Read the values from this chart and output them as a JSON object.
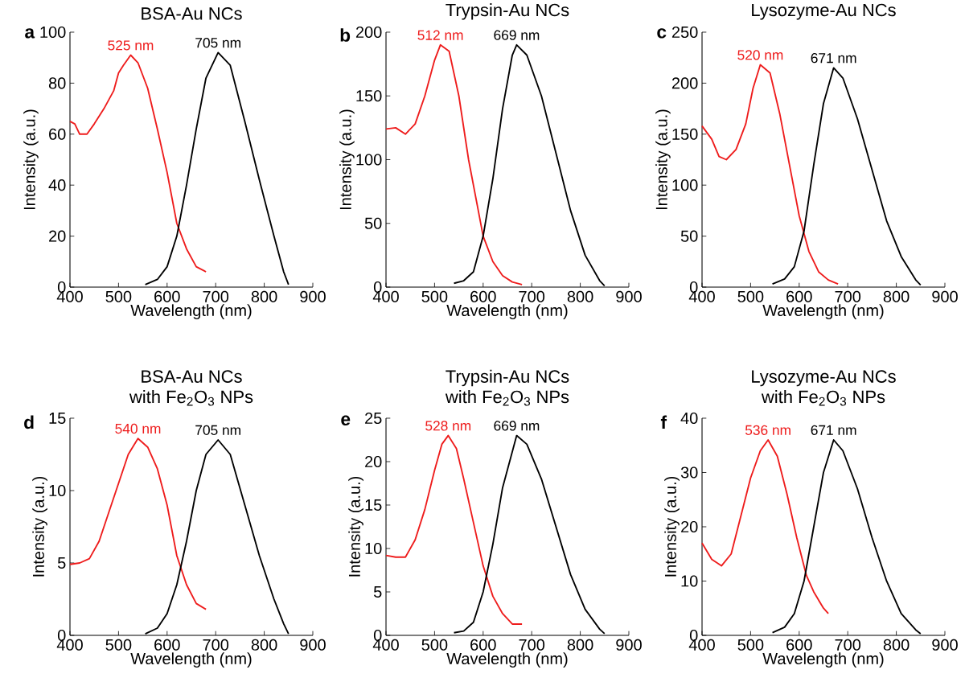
{
  "chart_data": [
    {
      "type": "line",
      "title": "BSA-Au NCs",
      "xlabel": "Wavelength (nm)",
      "ylabel": "Intensity (a.u.)",
      "xlim": [
        400,
        900
      ],
      "xticks": [
        400,
        500,
        600,
        700,
        800,
        900
      ],
      "ylim": [
        0,
        100
      ],
      "yticks": [
        0,
        20,
        40,
        60,
        80,
        100
      ],
      "marker": "none",
      "line_style": "solid",
      "annotations": [
        "a",
        {
          "text": "525 nm",
          "x": 525,
          "y": 91
        },
        {
          "text": "705 nm",
          "x": 705,
          "y": 92
        }
      ],
      "series": [
        {
          "color": "#ee1c1c",
          "x": [
            400,
            410,
            420,
            435,
            450,
            470,
            490,
            500,
            510,
            525,
            540,
            560,
            580,
            600,
            620,
            640,
            660,
            680
          ],
          "values": [
            65,
            64,
            60,
            60,
            64,
            70,
            77,
            84,
            87,
            91,
            88,
            78,
            62,
            45,
            25,
            15,
            8,
            6
          ]
        },
        {
          "color": "#000000",
          "x": [
            555,
            580,
            600,
            620,
            640,
            660,
            680,
            705,
            730,
            760,
            790,
            820,
            840,
            850
          ],
          "values": [
            1,
            3,
            8,
            20,
            40,
            62,
            82,
            92,
            87,
            65,
            42,
            20,
            6,
            1
          ]
        }
      ]
    },
    {
      "type": "line",
      "title": "Trypsin-Au NCs",
      "xlabel": "Wavelength (nm)",
      "ylabel": "Intensity (a.u.)",
      "xlim": [
        400,
        900
      ],
      "xticks": [
        400,
        500,
        600,
        700,
        800,
        900
      ],
      "ylim": [
        0,
        200
      ],
      "yticks": [
        0,
        50,
        100,
        150,
        200
      ],
      "marker": "none",
      "line_style": "solid",
      "annotations": [
        "b",
        {
          "text": "512 nm",
          "x": 512,
          "y": 190
        },
        {
          "text": "669 nm",
          "x": 669,
          "y": 190
        }
      ],
      "series": [
        {
          "color": "#ee1c1c",
          "x": [
            400,
            420,
            440,
            460,
            480,
            500,
            512,
            530,
            550,
            570,
            590,
            600,
            620,
            640,
            660,
            680
          ],
          "values": [
            124,
            125,
            120,
            128,
            150,
            178,
            190,
            185,
            150,
            100,
            60,
            40,
            20,
            9,
            4,
            2
          ]
        },
        {
          "color": "#000000",
          "x": [
            540,
            560,
            580,
            600,
            620,
            640,
            660,
            669,
            690,
            720,
            750,
            780,
            810,
            840,
            850
          ],
          "values": [
            3,
            5,
            12,
            40,
            85,
            140,
            182,
            190,
            182,
            150,
            105,
            60,
            25,
            5,
            1
          ]
        }
      ]
    },
    {
      "type": "line",
      "title": "Lysozyme-Au NCs",
      "xlabel": "Wavelength (nm)",
      "ylabel": "Intensity (a.u.)",
      "xlim": [
        400,
        900
      ],
      "xticks": [
        400,
        500,
        600,
        700,
        800,
        900
      ],
      "ylim": [
        0,
        250
      ],
      "yticks": [
        0,
        50,
        100,
        150,
        200,
        250
      ],
      "marker": "none",
      "line_style": "solid",
      "annotations": [
        "c",
        {
          "text": "520 nm",
          "x": 520,
          "y": 218
        },
        {
          "text": "671 nm",
          "x": 671,
          "y": 215
        }
      ],
      "series": [
        {
          "color": "#ee1c1c",
          "x": [
            400,
            420,
            435,
            450,
            470,
            490,
            505,
            520,
            540,
            560,
            580,
            600,
            620,
            640,
            660,
            680
          ],
          "values": [
            158,
            145,
            128,
            125,
            135,
            160,
            195,
            218,
            210,
            170,
            120,
            70,
            35,
            15,
            7,
            3
          ]
        },
        {
          "color": "#000000",
          "x": [
            545,
            570,
            590,
            610,
            630,
            650,
            671,
            690,
            720,
            750,
            780,
            810,
            840,
            850
          ],
          "values": [
            3,
            8,
            20,
            55,
            120,
            180,
            215,
            205,
            165,
            115,
            65,
            30,
            7,
            2
          ]
        }
      ]
    },
    {
      "type": "line",
      "title": "BSA-Au NCs",
      "subtitle": "with Fe$_{2}$O$_{3}$ NPs",
      "xlabel": "Wavelength (nm)",
      "ylabel": "Intensity (a.u.)",
      "xlim": [
        400,
        900
      ],
      "xticks": [
        400,
        500,
        600,
        700,
        800,
        900
      ],
      "ylim": [
        0,
        15
      ],
      "yticks": [
        0,
        5,
        10,
        15
      ],
      "marker": "none",
      "line_style": "solid",
      "annotations": [
        "d",
        {
          "text": "540 nm",
          "x": 540,
          "y": 13.6
        },
        {
          "text": "705 nm",
          "x": 705,
          "y": 13.5
        }
      ],
      "series": [
        {
          "color": "#ee1c1c",
          "x": [
            400,
            420,
            440,
            460,
            480,
            500,
            520,
            540,
            560,
            580,
            600,
            620,
            640,
            660,
            680
          ],
          "values": [
            4.9,
            5.0,
            5.3,
            6.5,
            8.5,
            10.5,
            12.5,
            13.6,
            13,
            11.5,
            9,
            5.5,
            3.5,
            2.2,
            1.8
          ]
        },
        {
          "color": "#000000",
          "x": [
            555,
            580,
            600,
            620,
            640,
            660,
            680,
            705,
            730,
            760,
            790,
            820,
            840,
            850
          ],
          "values": [
            0.1,
            0.5,
            1.5,
            3.5,
            6.5,
            10,
            12.5,
            13.5,
            12.5,
            9,
            5.5,
            2.5,
            0.8,
            0.1
          ]
        }
      ]
    },
    {
      "type": "line",
      "title": "Trypsin-Au NCs",
      "subtitle": "with Fe$_{2}$O$_{3}$ NPs",
      "xlabel": "Wavelength (nm)",
      "ylabel": "Intensity (a.u.)",
      "xlim": [
        400,
        900
      ],
      "xticks": [
        400,
        500,
        600,
        700,
        800,
        900
      ],
      "ylim": [
        0,
        25
      ],
      "yticks": [
        0,
        5,
        10,
        15,
        20,
        25
      ],
      "marker": "none",
      "line_style": "solid",
      "annotations": [
        "e",
        {
          "text": "528 nm",
          "x": 528,
          "y": 23
        },
        {
          "text": "669 nm",
          "x": 669,
          "y": 23
        }
      ],
      "series": [
        {
          "color": "#ee1c1c",
          "x": [
            400,
            420,
            440,
            460,
            480,
            500,
            515,
            528,
            545,
            560,
            580,
            600,
            620,
            640,
            660,
            680
          ],
          "values": [
            9.2,
            9.0,
            9.0,
            11,
            14.5,
            19,
            22,
            23,
            21.5,
            18,
            13,
            8,
            4.5,
            2.5,
            1.3,
            1.3
          ]
        },
        {
          "color": "#000000",
          "x": [
            540,
            560,
            580,
            600,
            620,
            640,
            669,
            690,
            720,
            750,
            780,
            810,
            840,
            850
          ],
          "values": [
            0.3,
            0.5,
            1.5,
            5,
            10.5,
            17,
            23,
            22,
            18,
            12.5,
            7,
            3,
            0.7,
            0.2
          ]
        }
      ]
    },
    {
      "type": "line",
      "title": "Lysozyme-Au NCs",
      "subtitle": "with Fe$_{2}$O$_{3}$ NPs",
      "xlabel": "Wavelength (nm)",
      "ylabel": "Intensity (a.u.)",
      "xlim": [
        400,
        900
      ],
      "xticks": [
        400,
        500,
        600,
        700,
        800,
        900
      ],
      "ylim": [
        0,
        40
      ],
      "yticks": [
        0,
        10,
        20,
        30,
        40
      ],
      "marker": "none",
      "line_style": "solid",
      "annotations": [
        "f",
        {
          "text": "536 nm",
          "x": 536,
          "y": 36
        },
        {
          "text": "671 nm",
          "x": 671,
          "y": 36
        }
      ],
      "series": [
        {
          "color": "#ee1c1c",
          "x": [
            400,
            420,
            440,
            460,
            480,
            500,
            520,
            536,
            555,
            575,
            595,
            615,
            630,
            650,
            660
          ],
          "values": [
            17,
            14,
            12.8,
            15,
            22,
            29,
            34,
            36,
            33,
            26,
            18,
            11,
            8,
            5,
            4
          ]
        },
        {
          "color": "#000000",
          "x": [
            545,
            570,
            590,
            610,
            630,
            650,
            671,
            690,
            720,
            750,
            780,
            810,
            840,
            850
          ],
          "values": [
            0.5,
            1.5,
            4,
            10,
            20,
            30,
            36,
            34,
            27,
            18,
            10,
            4,
            1,
            0.3
          ]
        }
      ]
    }
  ]
}
